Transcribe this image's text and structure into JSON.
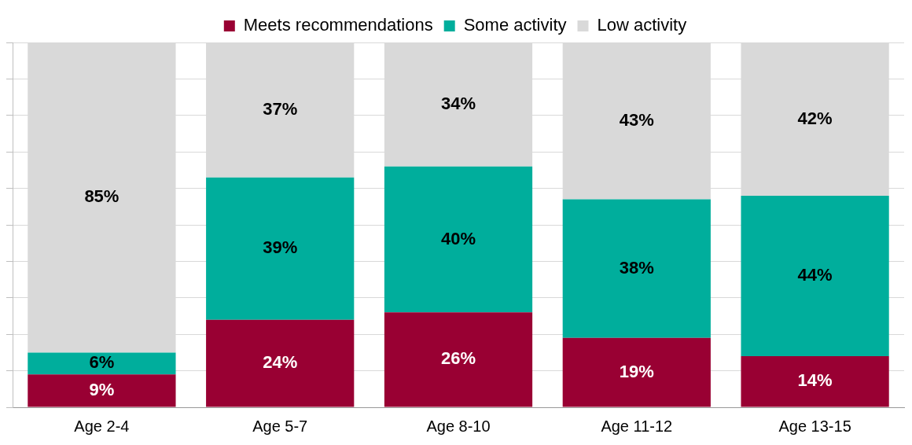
{
  "chart_data": {
    "type": "bar",
    "stacked": true,
    "categories": [
      "Age 2-4",
      "Age 5-7",
      "Age 8-10",
      "Age 11-12",
      "Age 13-15"
    ],
    "series": [
      {
        "name": "Meets recommendations",
        "color": "#990033",
        "values": [
          9,
          24,
          26,
          19,
          14
        ],
        "value_labels": [
          "9%",
          "24%",
          "26%",
          "19%",
          "14%"
        ]
      },
      {
        "name": "Some activity",
        "color": "#00ae9c",
        "values": [
          6,
          39,
          40,
          38,
          44
        ],
        "value_labels": [
          "6%",
          "39%",
          "40%",
          "38%",
          "44%"
        ]
      },
      {
        "name": "Low activity",
        "color": "#d9d9d9",
        "values": [
          85,
          37,
          34,
          43,
          42
        ],
        "value_labels": [
          "85%",
          "37%",
          "34%",
          "43%",
          "42%"
        ]
      }
    ],
    "ylim": [
      0,
      100
    ],
    "yticks": [
      0,
      {
        "value": 10,
        "label": null
      },
      {
        "value": 20,
        "label": null
      },
      {
        "value": 30,
        "label": null
      },
      {
        "value": 40,
        "label": null
      },
      {
        "value": 50,
        "label": null
      },
      {
        "value": 60,
        "label": null
      },
      {
        "value": 70,
        "label": null
      },
      {
        "value": 80,
        "label": null
      },
      {
        "value": 90,
        "label": null
      },
      {
        "value": 100,
        "label": null
      }
    ],
    "grid": "y",
    "legend": "top",
    "tick_labels": "x"
  }
}
